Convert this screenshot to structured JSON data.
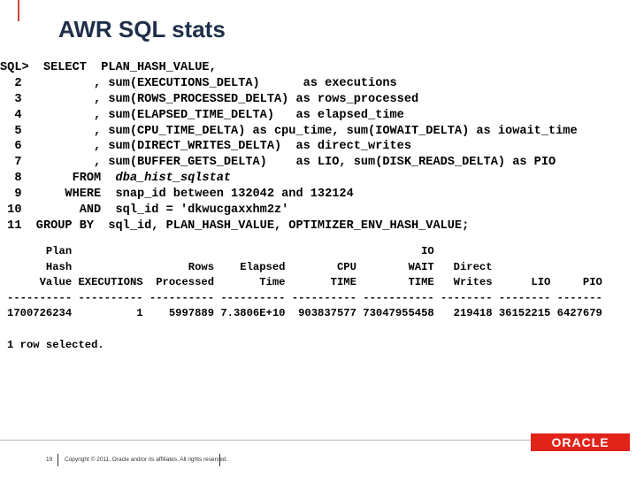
{
  "header": {
    "title": "AWR SQL stats"
  },
  "sql_lines": [
    "SQL>  SELECT  PLAN_HASH_VALUE,",
    "  2          , sum(EXECUTIONS_DELTA)      as executions",
    "  3          , sum(ROWS_PROCESSED_DELTA) as rows_processed",
    "  4          , sum(ELAPSED_TIME_DELTA)   as elapsed_time",
    "  5          , sum(CPU_TIME_DELTA) as cpu_time, sum(IOWAIT_DELTA) as iowait_time",
    "  6          , sum(DIRECT_WRITES_DELTA)  as direct_writes",
    "  7          , sum(BUFFER_GETS_DELTA)    as LIO, sum(DISK_READS_DELTA) as PIO",
    {
      "prefix": "  8       FROM  ",
      "table": "dba_hist_sqlstat"
    },
    "  9      WHERE  snap_id between 132042 and 132124",
    " 10        AND  sql_id = 'dkwucgaxxhm2z'",
    " 11  GROUP BY  sql_id, PLAN_HASH_VALUE, OPTIMIZER_ENV_HASH_VALUE;"
  ],
  "result": {
    "header_lines": [
      "      Plan                                                      IO",
      "      Hash                  Rows    Elapsed        CPU        WAIT   Direct",
      "     Value EXECUTIONS  Processed       Time       TIME        TIME   Writes      LIO     PIO"
    ],
    "separator": "---------- ---------- ---------- ---------- ---------- ----------- -------- -------- -------",
    "row": "1700726234          1    5997889 7.3806E+10  903837577 73047955458   219418 36152215 6427679",
    "blank": " ",
    "footer": "1 row selected."
  },
  "footer": {
    "page": "19",
    "copyright": "Copyright © 2011, Oracle and/or its affiliates. All rights reserved.",
    "logo": "ORACLE"
  }
}
